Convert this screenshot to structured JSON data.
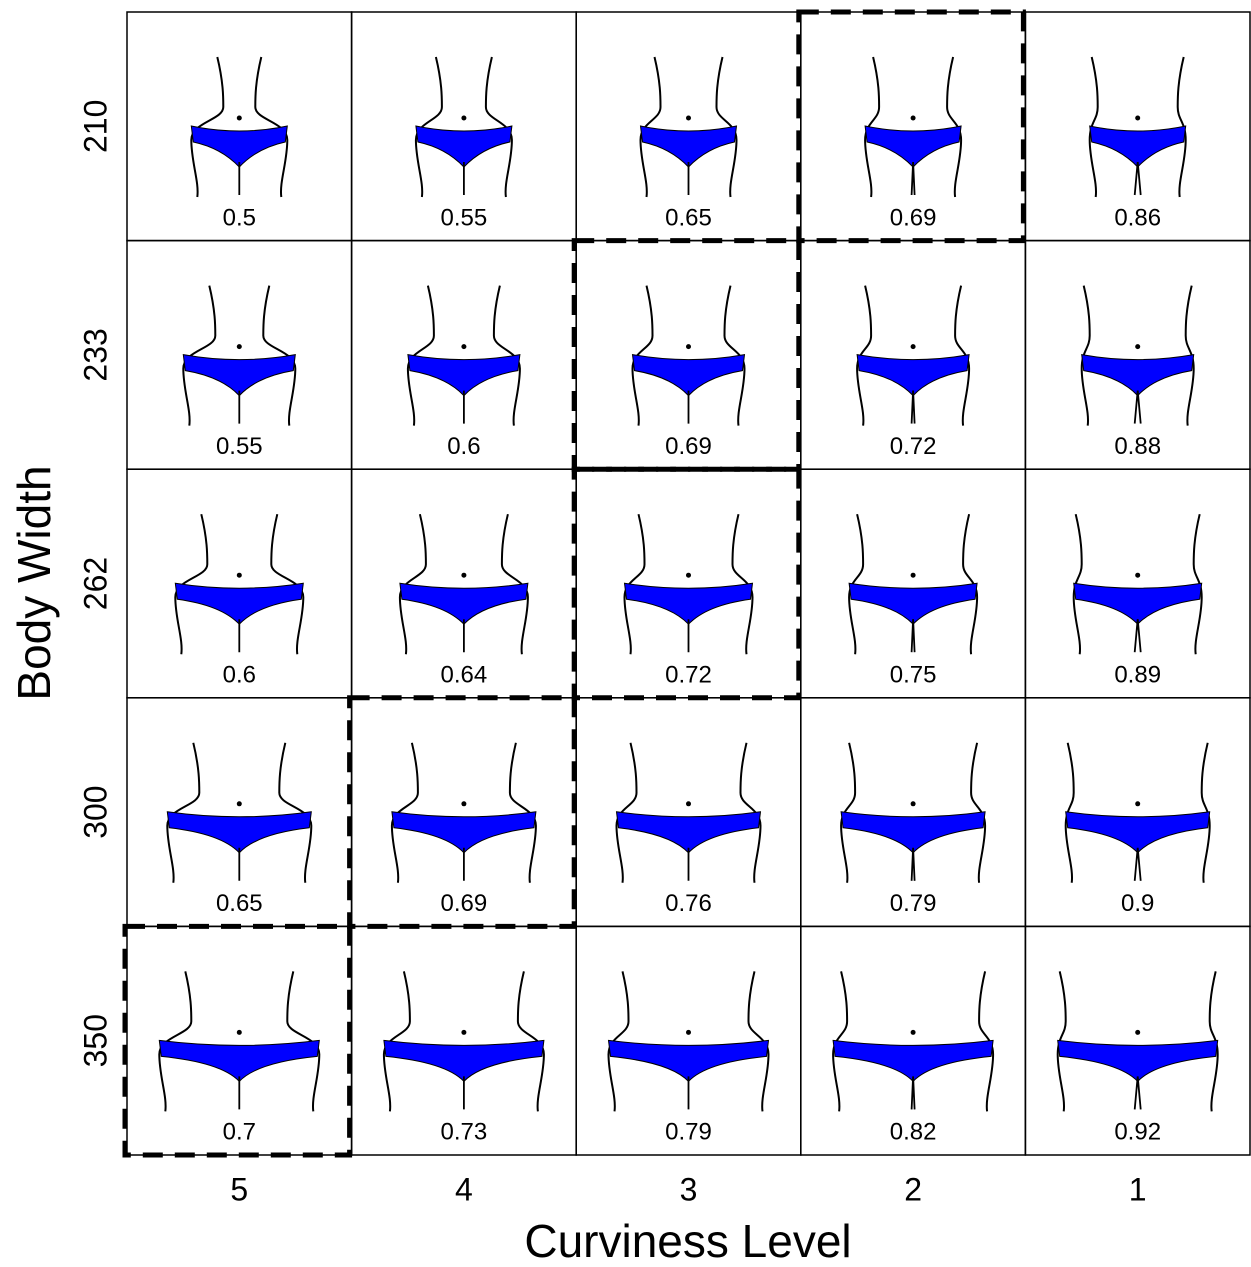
{
  "x_label": "Curviness Level",
  "y_label": "Body Width",
  "columns": [
    "5",
    "4",
    "3",
    "2",
    "1"
  ],
  "rows": [
    "210",
    "233",
    "262",
    "300",
    "350"
  ],
  "cells": [
    [
      {
        "value": 0.5,
        "highlighted": false
      },
      {
        "value": 0.55,
        "highlighted": false
      },
      {
        "value": 0.65,
        "highlighted": false
      },
      {
        "value": 0.69,
        "highlighted": true
      },
      {
        "value": 0.86,
        "highlighted": false
      }
    ],
    [
      {
        "value": 0.55,
        "highlighted": false
      },
      {
        "value": 0.6,
        "highlighted": false
      },
      {
        "value": 0.69,
        "highlighted": true
      },
      {
        "value": 0.72,
        "highlighted": false
      },
      {
        "value": 0.88,
        "highlighted": false
      }
    ],
    [
      {
        "value": 0.6,
        "highlighted": false
      },
      {
        "value": 0.64,
        "highlighted": false
      },
      {
        "value": 0.72,
        "highlighted": true
      },
      {
        "value": 0.75,
        "highlighted": false
      },
      {
        "value": 0.89,
        "highlighted": false
      }
    ],
    [
      {
        "value": 0.65,
        "highlighted": false
      },
      {
        "value": 0.69,
        "highlighted": true
      },
      {
        "value": 0.76,
        "highlighted": false
      },
      {
        "value": 0.79,
        "highlighted": false
      },
      {
        "value": 0.9,
        "highlighted": false
      }
    ],
    [
      {
        "value": 0.7,
        "highlighted": true
      },
      {
        "value": 0.73,
        "highlighted": false
      },
      {
        "value": 0.79,
        "highlighted": false
      },
      {
        "value": 0.82,
        "highlighted": false
      },
      {
        "value": 0.92,
        "highlighted": false
      }
    ]
  ]
}
